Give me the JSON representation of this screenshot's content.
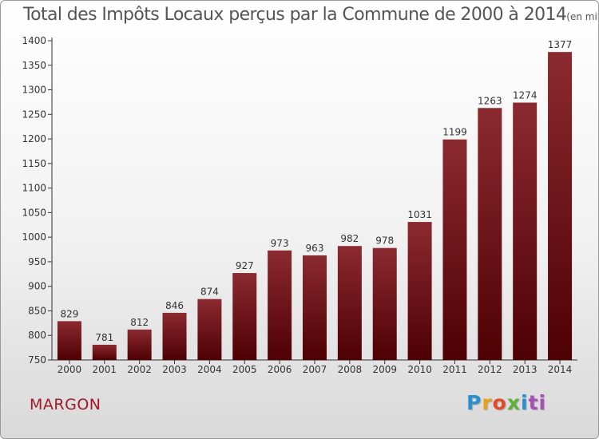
{
  "page": {
    "title": "Total des Impôts Locaux perçus par la Commune de 2000 à 2014",
    "unit": "(en milliers d'€)",
    "commune": "MARGON",
    "brand": "Proxiti",
    "brand_letters": [
      "P",
      "r",
      "o",
      "x",
      "i",
      "ti"
    ]
  },
  "colors": {
    "bar_top": "#8b2a31",
    "bar_bottom": "#4e0003",
    "commune": "#a0182a"
  },
  "chart_data": {
    "type": "bar",
    "title": "Total des Impôts Locaux perçus par la Commune de 2000 à 2014",
    "ylabel": "en milliers d'€",
    "xlabel": "",
    "categories": [
      "2000",
      "2001",
      "2002",
      "2003",
      "2004",
      "2005",
      "2006",
      "2007",
      "2008",
      "2009",
      "2010",
      "2011",
      "2012",
      "2013",
      "2014"
    ],
    "values": [
      829,
      781,
      812,
      846,
      874,
      927,
      973,
      963,
      982,
      978,
      1031,
      1199,
      1263,
      1274,
      1377
    ],
    "ylim": [
      750,
      1400
    ],
    "yticks": [
      750,
      800,
      850,
      900,
      950,
      1000,
      1050,
      1100,
      1150,
      1200,
      1250,
      1300,
      1350,
      1400
    ],
    "grid": false,
    "data_labels": true
  }
}
